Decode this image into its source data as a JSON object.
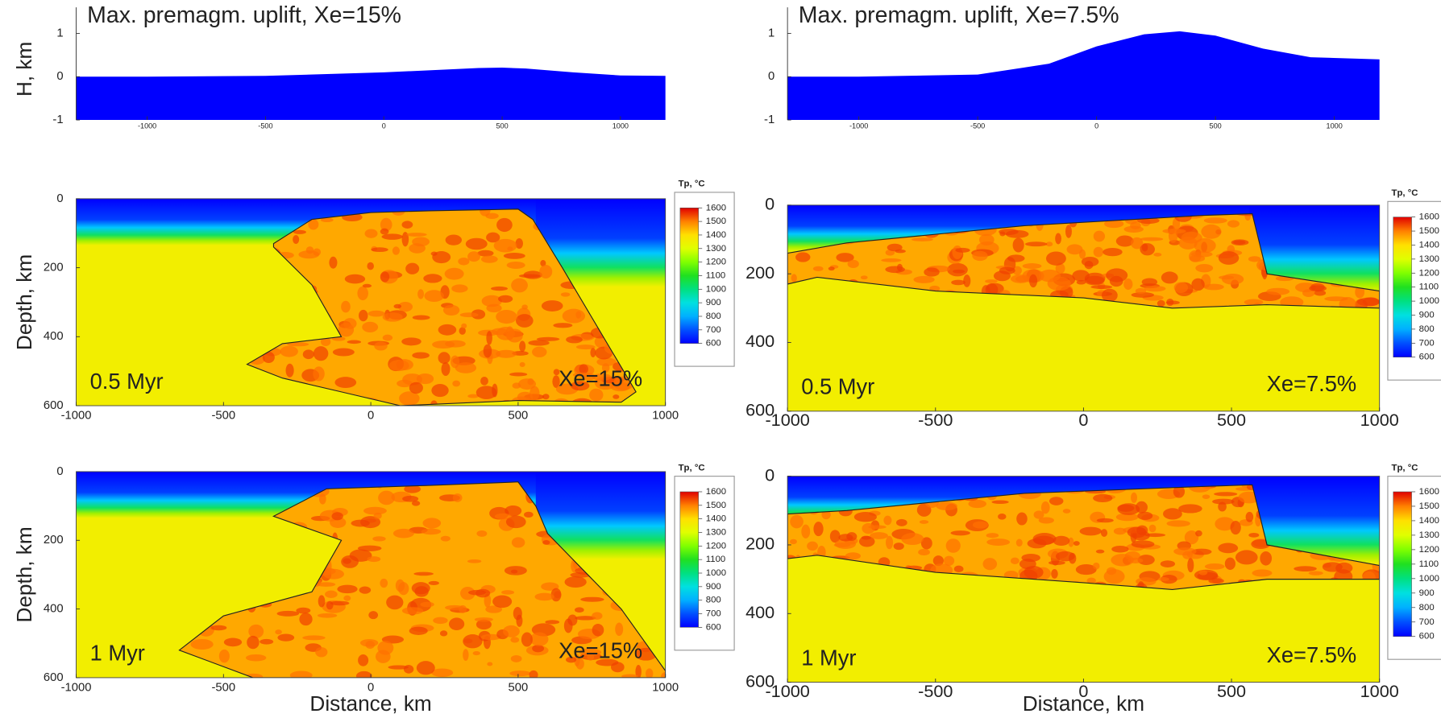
{
  "chart_data": [
    {
      "type": "area",
      "title": "Max. premagm. uplift, Xe=15%",
      "y_label": "H, km",
      "color": "#0000ff",
      "x": [
        -1300,
        -1000,
        -500,
        0,
        200,
        400,
        500,
        600,
        800,
        1000,
        1190
      ],
      "values": [
        0,
        0,
        0.02,
        0.1,
        0.15,
        0.2,
        0.21,
        0.19,
        0.1,
        0.03,
        0.02
      ],
      "xlim": [
        -1300,
        1190
      ],
      "ylim": [
        -1,
        1.35
      ],
      "xticks": [
        -1000,
        -500,
        0,
        500,
        1000
      ],
      "yticks": [
        -1,
        0,
        1
      ]
    },
    {
      "type": "field",
      "y_label": "Depth, km",
      "time_label": "0.5 Myr",
      "xe_label": "Xe=15%",
      "xlim": [
        -1000,
        1000
      ],
      "ylim": [
        600,
        0
      ],
      "xticks": [
        -1000,
        -500,
        0,
        500,
        1000
      ],
      "yticks": [
        0,
        200,
        400,
        600
      ],
      "colorbar": {
        "title": "Tp, °C",
        "ticks": [
          600,
          700,
          800,
          900,
          1000,
          1100,
          1200,
          1300,
          1400,
          1500,
          1600
        ]
      }
    },
    {
      "type": "field",
      "y_label": "Depth, km",
      "x_label": "Distance, km",
      "time_label": "1 Myr",
      "xe_label": "Xe=15%",
      "xlim": [
        -1000,
        1000
      ],
      "ylim": [
        600,
        0
      ],
      "xticks": [
        -1000,
        -500,
        0,
        500,
        1000
      ],
      "yticks": [
        0,
        200,
        400,
        600
      ],
      "colorbar": {
        "title": "Tp, °C",
        "ticks": [
          600,
          700,
          800,
          900,
          1000,
          1100,
          1200,
          1300,
          1400,
          1500,
          1600
        ]
      }
    },
    {
      "type": "area",
      "title": "Max. premagm. uplift, Xe=7.5%",
      "color": "#0000ff",
      "x": [
        -1300,
        -1000,
        -500,
        -200,
        0,
        200,
        350,
        500,
        700,
        900,
        1190
      ],
      "values": [
        0,
        0,
        0.05,
        0.3,
        0.7,
        0.98,
        1.05,
        0.95,
        0.65,
        0.45,
        0.4
      ],
      "xlim": [
        -1300,
        1190
      ],
      "ylim": [
        -1,
        1.35
      ],
      "xticks": [
        -1000,
        -500,
        0,
        500,
        1000
      ],
      "yticks": [
        -1,
        0,
        1
      ]
    },
    {
      "type": "field",
      "time_label": "0.5 Myr",
      "xe_label": "Xe=7.5%",
      "xlim": [
        -1000,
        1000
      ],
      "ylim": [
        600,
        0
      ],
      "xticks": [
        -1000,
        -500,
        0,
        500,
        1000
      ],
      "yticks": [
        0,
        200,
        400,
        600
      ],
      "colorbar": {
        "title": "Tp, °C",
        "ticks": [
          600,
          700,
          800,
          900,
          1000,
          1100,
          1200,
          1300,
          1400,
          1500,
          1600
        ]
      }
    },
    {
      "type": "field",
      "x_label": "Distance, km",
      "time_label": "1 Myr",
      "xe_label": "Xe=7.5%",
      "xlim": [
        -1000,
        1000
      ],
      "ylim": [
        600,
        0
      ],
      "xticks": [
        -1000,
        -500,
        0,
        500,
        1000
      ],
      "yticks": [
        0,
        200,
        400,
        600
      ],
      "colorbar": {
        "title": "Tp, °C",
        "ticks": [
          600,
          700,
          800,
          900,
          1000,
          1100,
          1200,
          1300,
          1400,
          1500,
          1600
        ]
      }
    }
  ]
}
